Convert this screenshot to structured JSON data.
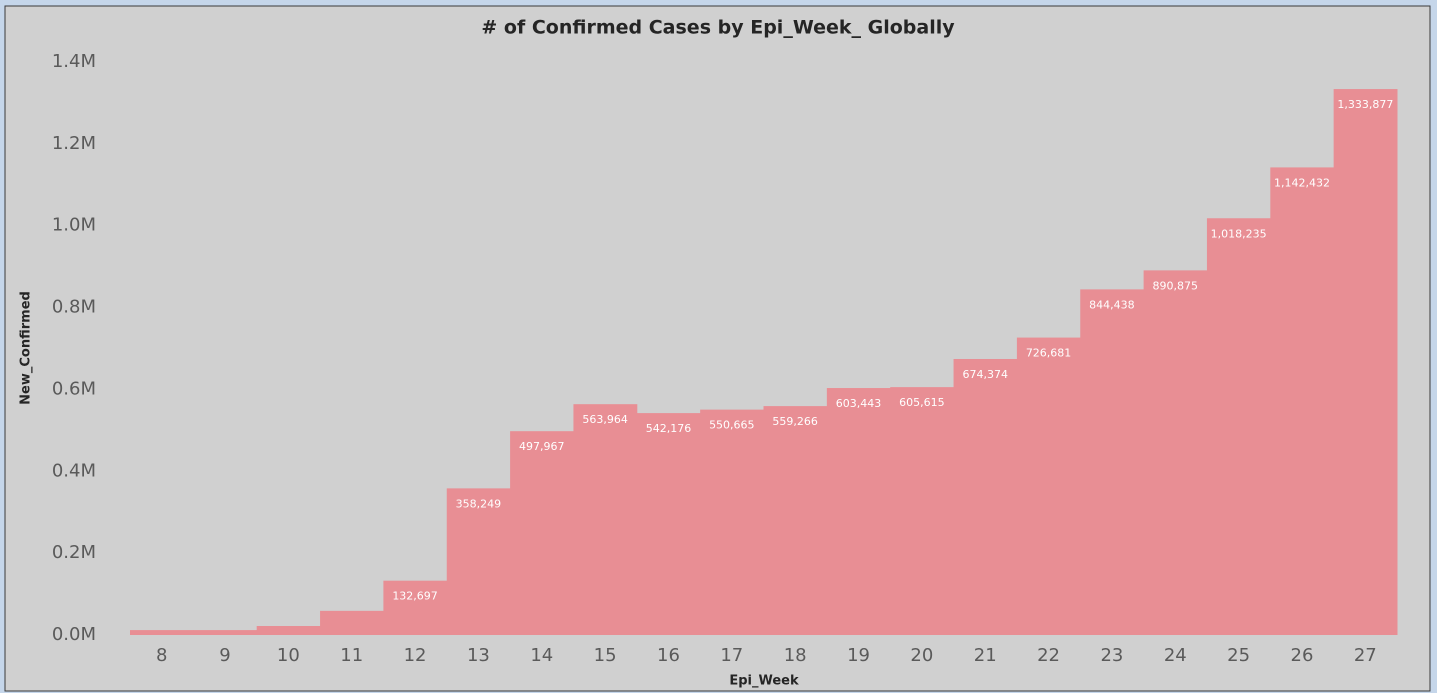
{
  "chart_data": {
    "type": "bar",
    "title": "# of Confirmed Cases by Epi_Week_ Globally",
    "x_label": "Epi_Week",
    "y_label": "New_Confirmed",
    "categories": [
      8,
      9,
      10,
      11,
      12,
      13,
      14,
      15,
      16,
      17,
      18,
      19,
      20,
      21,
      22,
      23,
      24,
      25,
      26,
      27
    ],
    "values": [
      12000,
      12000,
      22000,
      59000,
      132697,
      358249,
      497967,
      563964,
      542176,
      550665,
      559266,
      603443,
      605615,
      674374,
      726681,
      844438,
      890875,
      1018235,
      1142432,
      1333877
    ],
    "value_labels": [
      null,
      null,
      null,
      null,
      "132,697",
      "358,249",
      "497,967",
      "563,964",
      "542,176",
      "550,665",
      "559,266",
      "603,443",
      "605,615",
      "674,374",
      "726,681",
      "844,438",
      "890,875",
      "1,018,235",
      "1,142,432",
      "1,333,877"
    ],
    "color": "#e88e94",
    "ylim": [
      0,
      1400000
    ],
    "yticks": [
      {
        "value": 0,
        "label": "0.0M"
      },
      {
        "value": 200000,
        "label": "0.2M"
      },
      {
        "value": 400000,
        "label": "0.4M"
      },
      {
        "value": 600000,
        "label": "0.6M"
      },
      {
        "value": 800000,
        "label": "0.8M"
      },
      {
        "value": 1000000,
        "label": "1.0M"
      },
      {
        "value": 1200000,
        "label": "1.2M"
      },
      {
        "value": 1400000,
        "label": "1.4M"
      }
    ],
    "grid": false
  }
}
